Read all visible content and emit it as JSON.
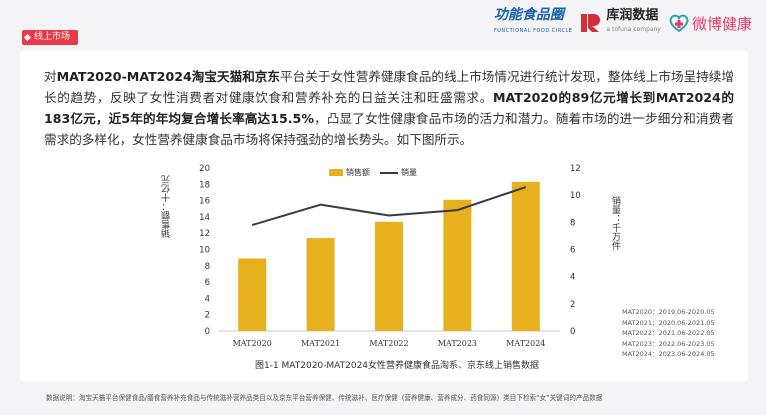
{
  "header": {
    "section_tag": "线上市场",
    "logo_1": "功能食品圈",
    "logo_1_sub": "FUNCTIONAL FOOD CIRCLE",
    "logo_2": "库润数据",
    "logo_2_sub": "a tofuna company",
    "logo_3": "微博健康"
  },
  "paragraph": {
    "p1": "对",
    "p2": "MAT2020-MAT2024淘宝天猫和京东",
    "p3": "平台关于女性营养健康食品的线上市场情况进行统计发现，整体线上市场呈持续增长的趋势，反映了女性消费者对健康饮食和营养补充的日益关注和旺盛需求。",
    "p4": "MAT2020的89亿元增长到MAT2024的183亿元，近5年的年均复合增长率高达15.5%",
    "p5": "，凸显了女性健康食品市场的活力和潜力。随着市场的进一步细分和消费者需求的多样化，女性营养健康食品市场将保持强劲的增长势头。如下图所示。"
  },
  "chart_data": {
    "type": "bar",
    "categories": [
      "MAT2020",
      "MAT2021",
      "MAT2022",
      "MAT2023",
      "MAT2024"
    ],
    "series": [
      {
        "name": "销售额",
        "type": "bar",
        "axis": "left",
        "color": "#e7b11d",
        "values": [
          8.9,
          11.4,
          13.4,
          16.1,
          18.3
        ]
      },
      {
        "name": "销量",
        "type": "line",
        "axis": "right",
        "color": "#3a3a44",
        "values": [
          7.8,
          9.3,
          8.5,
          8.9,
          10.6
        ]
      }
    ],
    "ylabel": "销售额：十亿元",
    "y2label": "销量：千万件",
    "ylim": [
      0,
      20
    ],
    "y2lim": [
      0,
      12
    ],
    "yticks": [
      "0",
      "2",
      "4",
      "6",
      "8",
      "10",
      "12",
      "14",
      "16",
      "18",
      "20"
    ],
    "y2ticks": [
      "0",
      "2",
      "4",
      "6",
      "8",
      "10",
      "12"
    ],
    "legend_position": "top",
    "grid": false
  },
  "notes": [
    "MAT2020：2019.06-2020.05",
    "MAT2021：2020.06-2021.05",
    "MAT2022：2021.06-2022.05",
    "MAT2023：2022.06-2023.05",
    "MAT2024：2023.06-2024.05"
  ],
  "caption": "图1-1 MAT2020-MAT2024女性营养健康食品淘系、京东线上销售数据",
  "footnote": "数据说明：淘宝天猫平台保健食品/膳食营养补充食品与传统滋补营养品类目以及京东平台营养保健、传统滋补、医疗保健（营养健康、营养成分、药食同源）类目下检索“女”关键词的产品数据"
}
